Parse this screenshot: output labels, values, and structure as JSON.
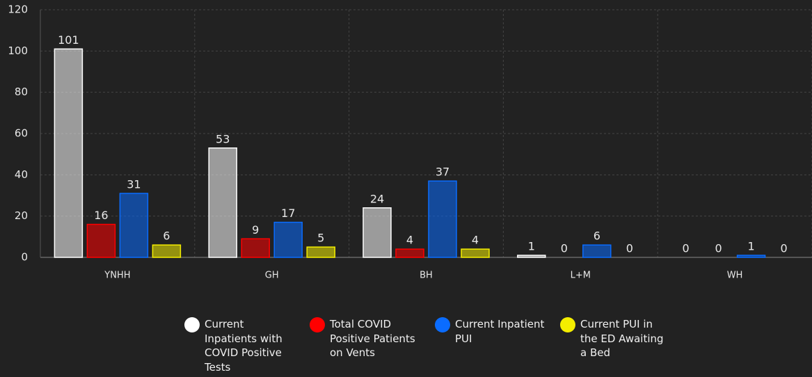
{
  "chart_data": {
    "type": "bar",
    "categories": [
      "YNHH",
      "GH",
      "BH",
      "L+M",
      "WH"
    ],
    "series": [
      {
        "name": "Current Inpatients with COVID Positive Tests",
        "color": "#ffffff",
        "values": [
          101,
          53,
          24,
          1,
          0
        ]
      },
      {
        "name": "Total COVID Positive Patients on Vents",
        "color": "#ff0000",
        "values": [
          16,
          9,
          4,
          0,
          0
        ]
      },
      {
        "name": "Current Inpatient PUI",
        "color": "#0a6cff",
        "values": [
          31,
          17,
          37,
          6,
          1
        ]
      },
      {
        "name": "Current PUI in the ED Awaiting a Bed",
        "color": "#f4ee00",
        "values": [
          6,
          5,
          4,
          0,
          0
        ]
      }
    ],
    "ylim": [
      0,
      120
    ],
    "yticks": [
      0,
      20,
      40,
      60,
      80,
      100,
      120
    ],
    "grid": true,
    "legend": "bottom"
  }
}
